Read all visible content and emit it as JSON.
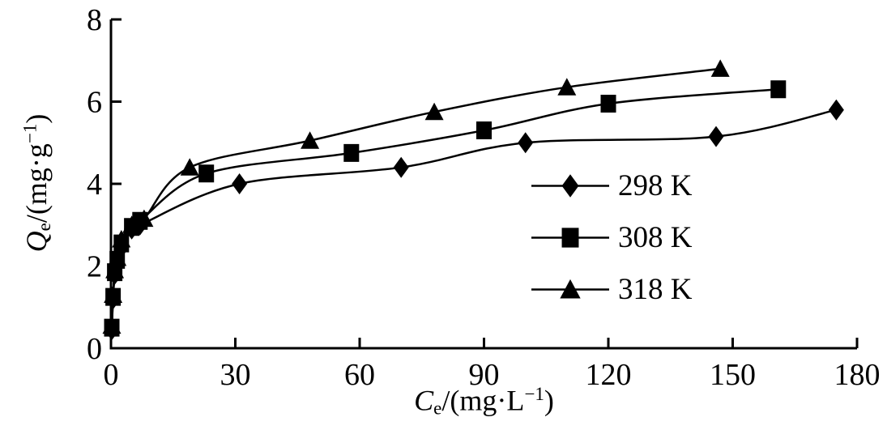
{
  "figure": {
    "background_color": "#ffffff",
    "ink_color": "#000000"
  },
  "chart_data": {
    "type": "line",
    "title": "",
    "xlabel": "Ce/(mg·L−1)",
    "ylabel": "Qe/(mg·g−1)",
    "xlabel_parts": {
      "variable": "C",
      "subscript": "e",
      "unit_open": "/(mg·L",
      "exponent": "−1",
      "unit_close": ")"
    },
    "ylabel_parts": {
      "variable": "Q",
      "subscript": "e",
      "unit_open": "/(mg·g",
      "exponent": "−1",
      "unit_close": ")"
    },
    "xlim": [
      0,
      180
    ],
    "ylim": [
      0,
      8
    ],
    "x_ticks": [
      0,
      30,
      60,
      90,
      120,
      150,
      180
    ],
    "y_ticks": [
      0,
      2,
      4,
      6,
      8
    ],
    "grid": false,
    "legend_position": "inside-right",
    "series": [
      {
        "name": "298 K",
        "marker": "diamond",
        "color": "#000000",
        "points": [
          [
            0.2,
            0.45
          ],
          [
            0.5,
            1.2
          ],
          [
            0.9,
            1.8
          ],
          [
            1.5,
            2.1
          ],
          [
            2.5,
            2.45
          ],
          [
            5,
            2.9
          ],
          [
            7,
            3.0
          ],
          [
            31,
            4.0
          ],
          [
            70,
            4.4
          ],
          [
            100,
            5.0
          ],
          [
            146,
            5.15
          ],
          [
            175,
            5.8
          ]
        ]
      },
      {
        "name": "308 K",
        "marker": "square",
        "color": "#000000",
        "points": [
          [
            0.2,
            0.5
          ],
          [
            0.5,
            1.25
          ],
          [
            0.9,
            1.85
          ],
          [
            1.5,
            2.15
          ],
          [
            2.5,
            2.55
          ],
          [
            5,
            2.95
          ],
          [
            7,
            3.1
          ],
          [
            23,
            4.25
          ],
          [
            58,
            4.75
          ],
          [
            90,
            5.3
          ],
          [
            120,
            5.95
          ],
          [
            161,
            6.3
          ]
        ]
      },
      {
        "name": "318 K",
        "marker": "triangle",
        "color": "#000000",
        "points": [
          [
            0.2,
            0.55
          ],
          [
            0.5,
            1.3
          ],
          [
            0.9,
            1.9
          ],
          [
            1.5,
            2.2
          ],
          [
            2.5,
            2.65
          ],
          [
            5,
            3.0
          ],
          [
            8,
            3.15
          ],
          [
            19,
            4.4
          ],
          [
            48,
            5.05
          ],
          [
            78,
            5.75
          ],
          [
            110,
            6.35
          ],
          [
            147,
            6.8
          ]
        ]
      }
    ]
  }
}
